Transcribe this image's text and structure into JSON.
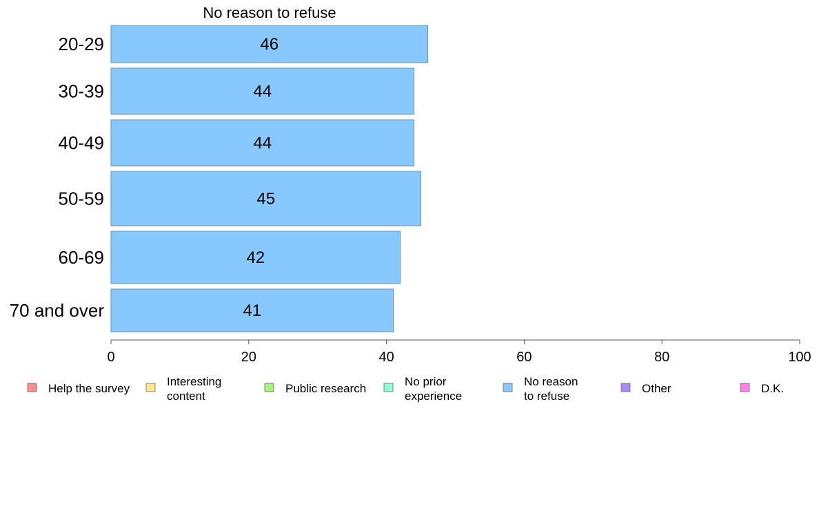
{
  "chart_data": {
    "type": "bar",
    "orientation": "horizontal",
    "title": "No reason to refuse",
    "xlabel": "",
    "ylabel": "",
    "categories": [
      "20-29",
      "30-39",
      "40-49",
      "50-59",
      "60-69",
      "70 and over"
    ],
    "values": [
      46,
      44,
      44,
      45,
      42,
      41
    ],
    "bar_color": "#87c9ff",
    "bar_stroke": "#6f8fae",
    "xlim": [
      0,
      100
    ],
    "xticks": [
      0,
      20,
      40,
      60,
      80,
      100
    ],
    "grid": false,
    "legend": {
      "placement": "bottom",
      "items": [
        {
          "lines": [
            "Help the survey"
          ],
          "color": "#ff8a8a"
        },
        {
          "lines": [
            "Interesting",
            "content"
          ],
          "color": "#ffe98a"
        },
        {
          "lines": [
            "Public research"
          ],
          "color": "#a8f080"
        },
        {
          "lines": [
            "No prior",
            "experience"
          ],
          "color": "#8affd6"
        },
        {
          "lines": [
            "No reason",
            "to refuse"
          ],
          "color": "#87c9ff"
        },
        {
          "lines": [
            "Other"
          ],
          "color": "#a98af5"
        },
        {
          "lines": [
            "D.K."
          ],
          "color": "#ff80e8"
        }
      ]
    }
  }
}
